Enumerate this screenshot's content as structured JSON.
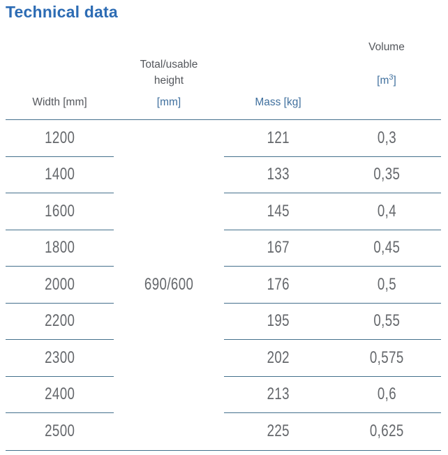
{
  "title": "Technical data",
  "colors": {
    "title_blue": "#2d6cb4",
    "header_blue": "#40709e",
    "header_gray": "#54575c",
    "line_steel_blue": "#44708c",
    "data_gray": "#64676b",
    "background": "#ffffff"
  },
  "table": {
    "headers": {
      "width": "Width [mm]",
      "height_line1": "Total/usable",
      "height_line2": "height",
      "height_unit": "[mm]",
      "mass": "Mass [kg]",
      "volume": "Volume",
      "volume_unit_pre": "[m",
      "volume_unit_sup": "3",
      "volume_unit_post": "]"
    },
    "shared_height_value": "690/600",
    "rows": [
      {
        "width": "1200",
        "mass": "121",
        "volume": "0,3"
      },
      {
        "width": "1400",
        "mass": "133",
        "volume": "0,35"
      },
      {
        "width": "1600",
        "mass": "145",
        "volume": "0,4"
      },
      {
        "width": "1800",
        "mass": "167",
        "volume": "0,45"
      },
      {
        "width": "2000",
        "mass": "176",
        "volume": "0,5"
      },
      {
        "width": "2200",
        "mass": "195",
        "volume": "0,55"
      },
      {
        "width": "2300",
        "mass": "202",
        "volume": "0,575"
      },
      {
        "width": "2400",
        "mass": "213",
        "volume": "0,6"
      },
      {
        "width": "2500",
        "mass": "225",
        "volume": "0,625"
      }
    ]
  }
}
